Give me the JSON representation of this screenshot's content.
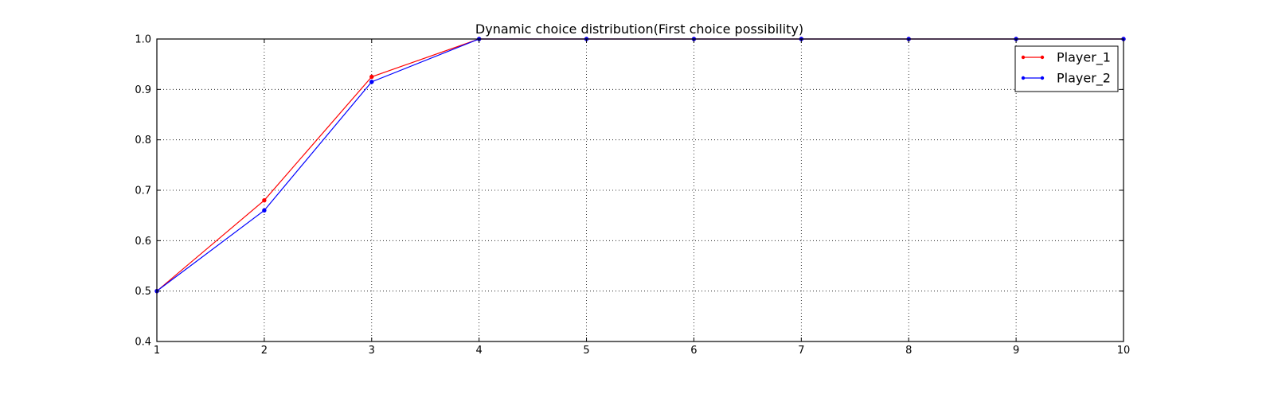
{
  "chart_data": {
    "type": "line",
    "title": "Dynamic choice distribution(First choice possibility)",
    "xlabel": "",
    "ylabel": "",
    "x": [
      1,
      2,
      3,
      4,
      5,
      6,
      7,
      8,
      9,
      10
    ],
    "xlim": [
      1,
      10
    ],
    "ylim": [
      0.4,
      1.0
    ],
    "xticks": [
      "1",
      "2",
      "3",
      "4",
      "5",
      "6",
      "7",
      "8",
      "9",
      "10"
    ],
    "yticks": [
      "0.4",
      "0.5",
      "0.6",
      "0.7",
      "0.8",
      "0.9",
      "1.0"
    ],
    "grid": true,
    "legend_position": "top-right",
    "series": [
      {
        "name": "Player_1",
        "color": "#ff0000",
        "values": [
          0.5,
          0.68,
          0.925,
          1.0,
          1.0,
          1.0,
          1.0,
          1.0,
          1.0,
          1.0
        ]
      },
      {
        "name": "Player_2",
        "color": "#0000ff",
        "values": [
          0.5,
          0.66,
          0.915,
          1.0,
          1.0,
          1.0,
          1.0,
          1.0,
          1.0,
          1.0
        ]
      }
    ]
  }
}
